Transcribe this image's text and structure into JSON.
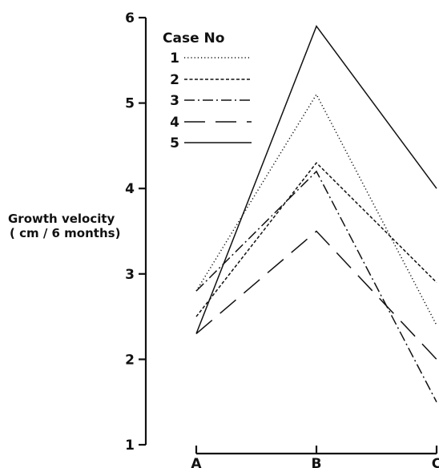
{
  "chart_data": {
    "type": "line",
    "title": "",
    "ylabel_lines": [
      "Growth  velocity",
      "( cm / 6 months)"
    ],
    "xlabel": "",
    "categories": [
      "A",
      "B",
      "C"
    ],
    "ylim": [
      1,
      6
    ],
    "yticks": [
      "1",
      "2",
      "3",
      "4",
      "5",
      "6"
    ],
    "legend_title": "Case No",
    "legend_position": "top-left inside",
    "grid": false,
    "series": [
      {
        "name": "1",
        "values": [
          2.8,
          5.1,
          2.4
        ],
        "style": "dotted"
      },
      {
        "name": "2",
        "values": [
          2.5,
          4.3,
          2.9
        ],
        "style": "short-dash"
      },
      {
        "name": "3",
        "values": [
          2.8,
          4.2,
          1.5
        ],
        "style": "dash-dot"
      },
      {
        "name": "4",
        "values": [
          2.3,
          3.5,
          2.0
        ],
        "style": "long-dash"
      },
      {
        "name": "5",
        "values": [
          2.3,
          5.9,
          4.0
        ],
        "style": "solid"
      }
    ],
    "color": "#111111"
  }
}
